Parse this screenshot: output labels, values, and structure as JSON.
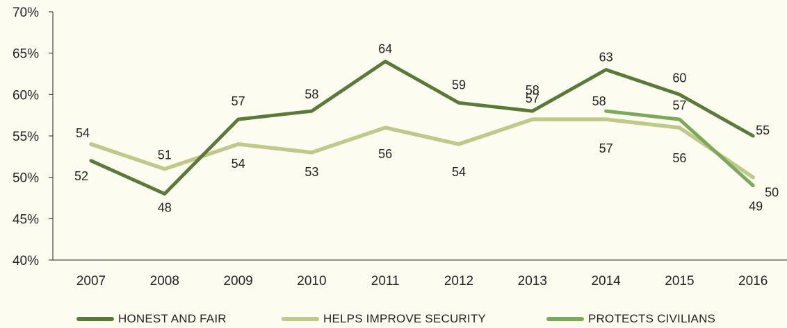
{
  "chart_data": {
    "type": "line",
    "title": "",
    "xlabel": "",
    "ylabel": "",
    "categories": [
      "2007",
      "2008",
      "2009",
      "2010",
      "2011",
      "2012",
      "2013",
      "2014",
      "2015",
      "2016"
    ],
    "ylim": [
      40,
      70
    ],
    "yticks": [
      "70%",
      "65%",
      "60%",
      "55%",
      "50%",
      "45%",
      "40%"
    ],
    "grid": false,
    "legend_position": "bottom",
    "series": [
      {
        "name": "HONEST AND FAIR",
        "color": "#5a7a3a",
        "values": [
          52,
          48,
          57,
          58,
          64,
          59,
          58,
          63,
          60,
          55
        ]
      },
      {
        "name": "HELPS IMPROVE SECURITY",
        "color": "#bfc98a",
        "values": [
          54,
          51,
          54,
          53,
          56,
          54,
          57,
          57,
          56,
          50
        ]
      },
      {
        "name": "PROTECTS CIVILIANS",
        "color": "#7aa95a",
        "values": [
          null,
          null,
          null,
          null,
          null,
          null,
          null,
          58,
          57,
          49
        ]
      }
    ]
  }
}
